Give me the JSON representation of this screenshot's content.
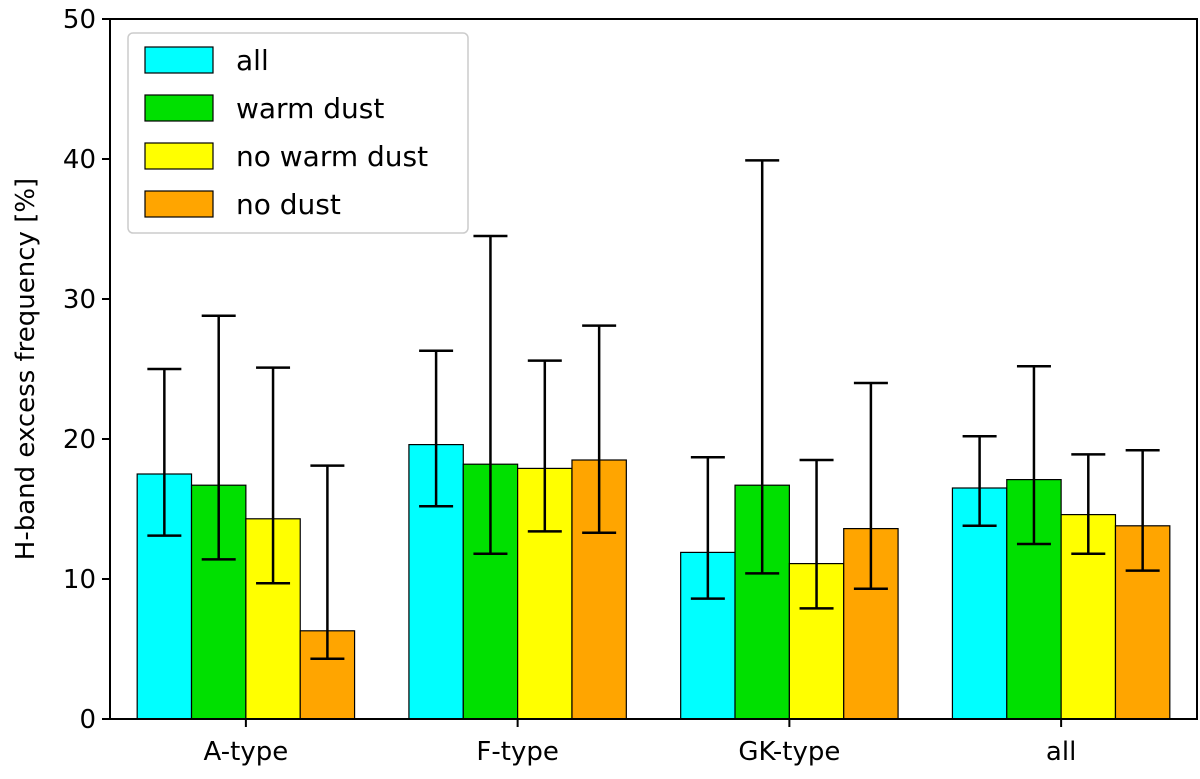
{
  "chart_data": {
    "type": "bar",
    "title": "",
    "xlabel": "",
    "ylabel": "H-band excess frequency [%]",
    "ylim": [
      0,
      50
    ],
    "yticks": [
      0,
      10,
      20,
      30,
      40,
      50
    ],
    "grid": false,
    "legend_position": "top-left",
    "categories": [
      "A-type",
      "F-type",
      "GK-type",
      "all"
    ],
    "series": [
      {
        "name": "all",
        "color": "#00ffff",
        "values": [
          17.5,
          19.6,
          11.9,
          16.5
        ],
        "err_low": [
          13.1,
          15.2,
          8.6,
          13.8
        ],
        "err_high": [
          25.0,
          26.3,
          18.7,
          20.2
        ]
      },
      {
        "name": "warm dust",
        "color": "#00e000",
        "values": [
          16.7,
          18.2,
          16.7,
          17.1
        ],
        "err_low": [
          11.4,
          11.8,
          10.4,
          12.5
        ],
        "err_high": [
          28.8,
          34.5,
          39.9,
          25.2
        ]
      },
      {
        "name": "no warm dust",
        "color": "#ffff00",
        "values": [
          14.3,
          17.9,
          11.1,
          14.6
        ],
        "err_low": [
          9.7,
          13.4,
          7.9,
          11.8
        ],
        "err_high": [
          25.1,
          25.6,
          18.5,
          18.9
        ]
      },
      {
        "name": "no dust",
        "color": "#ffa500",
        "values": [
          6.3,
          18.5,
          13.6,
          13.8
        ],
        "err_low": [
          4.3,
          13.3,
          9.3,
          10.6
        ],
        "err_high": [
          18.1,
          28.1,
          24.0,
          19.2
        ]
      }
    ]
  }
}
